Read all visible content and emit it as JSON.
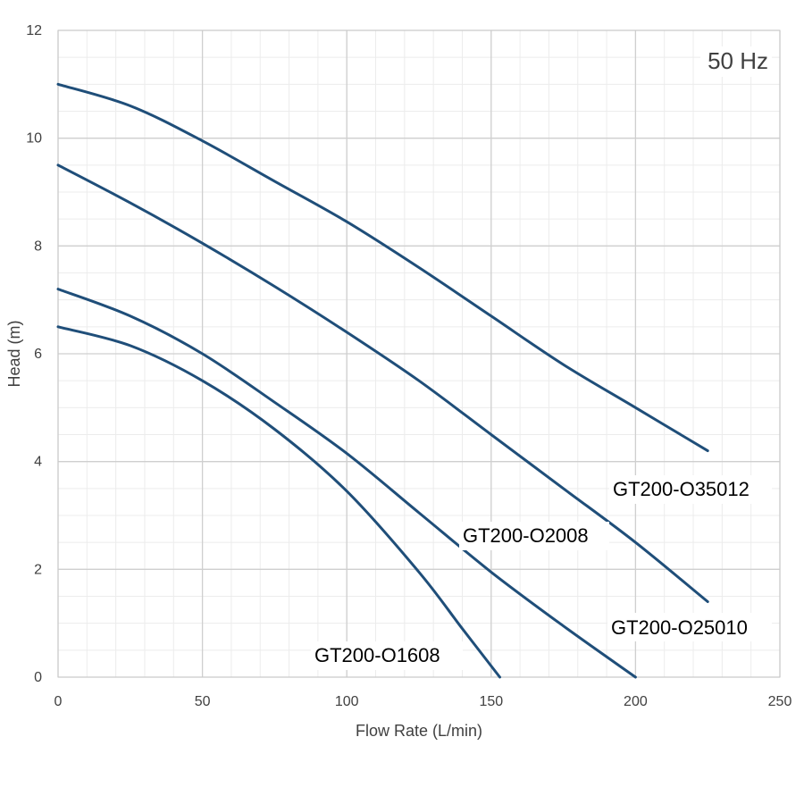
{
  "chart_data": {
    "type": "line",
    "title": "",
    "annotation": "50 Hz",
    "xlabel": "Flow Rate (L/min)",
    "ylabel": "Head (m)",
    "xlim": [
      0,
      250
    ],
    "ylim": [
      0,
      12
    ],
    "x_ticks": [
      0,
      50,
      100,
      150,
      200,
      250
    ],
    "y_ticks": [
      0,
      2,
      4,
      6,
      8,
      10,
      12
    ],
    "x_minor_step": 10,
    "y_minor_step": 0.5,
    "grid": true,
    "line_color": "#1f4e79",
    "series": [
      {
        "name": "GT200-O35012",
        "points": [
          [
            0,
            11.0
          ],
          [
            25,
            10.6
          ],
          [
            50,
            9.95
          ],
          [
            75,
            9.2
          ],
          [
            100,
            8.45
          ],
          [
            125,
            7.6
          ],
          [
            150,
            6.7
          ],
          [
            175,
            5.8
          ],
          [
            200,
            5.0
          ],
          [
            225,
            4.2
          ]
        ]
      },
      {
        "name": "GT200-O25010",
        "points": [
          [
            0,
            9.5
          ],
          [
            25,
            8.8
          ],
          [
            50,
            8.05
          ],
          [
            75,
            7.25
          ],
          [
            100,
            6.4
          ],
          [
            125,
            5.5
          ],
          [
            150,
            4.5
          ],
          [
            175,
            3.5
          ],
          [
            200,
            2.5
          ],
          [
            225,
            1.4
          ]
        ]
      },
      {
        "name": "GT200-O2008",
        "points": [
          [
            0,
            7.2
          ],
          [
            25,
            6.7
          ],
          [
            50,
            6.0
          ],
          [
            75,
            5.1
          ],
          [
            100,
            4.15
          ],
          [
            125,
            3.05
          ],
          [
            150,
            1.95
          ],
          [
            175,
            0.95
          ],
          [
            200,
            0.0
          ]
        ]
      },
      {
        "name": "GT200-O1608",
        "points": [
          [
            0,
            6.5
          ],
          [
            25,
            6.15
          ],
          [
            50,
            5.5
          ],
          [
            75,
            4.6
          ],
          [
            100,
            3.45
          ],
          [
            125,
            1.95
          ],
          [
            140,
            0.9
          ],
          [
            153,
            0.0
          ]
        ]
      }
    ]
  }
}
